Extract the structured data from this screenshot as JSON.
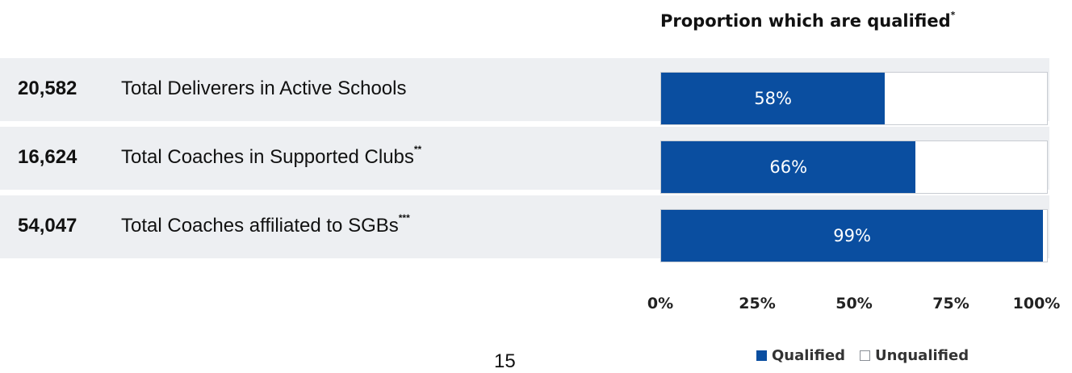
{
  "chart_data": {
    "type": "bar",
    "orientation": "horizontal",
    "stacked": true,
    "title": "Proportion which are qualified",
    "title_marker": "*",
    "categories": [
      {
        "count": "20,582",
        "label": "Total Deliverers in Active Schools",
        "marker": ""
      },
      {
        "count": "16,624",
        "label": "Total Coaches in Supported Clubs",
        "marker": "**"
      },
      {
        "count": "54,047",
        "label": "Total Coaches affiliated to SGBs",
        "marker": "***"
      }
    ],
    "series": [
      {
        "name": "Qualified",
        "values": [
          58,
          66,
          99
        ],
        "labels": [
          "58%",
          "66%",
          "99%"
        ]
      },
      {
        "name": "Unqualified",
        "values": [
          42,
          34,
          1
        ]
      }
    ],
    "xlim": [
      0,
      100
    ],
    "x_ticks": [
      "0%",
      "25%",
      "50%",
      "75%",
      "100%"
    ],
    "legend_position": "bottom-right",
    "grid": false,
    "colors": {
      "qualified": "#0a4ea0",
      "unqualified": "#ffffff",
      "row_band": "#edeff2"
    }
  },
  "page": {
    "number": "15"
  }
}
